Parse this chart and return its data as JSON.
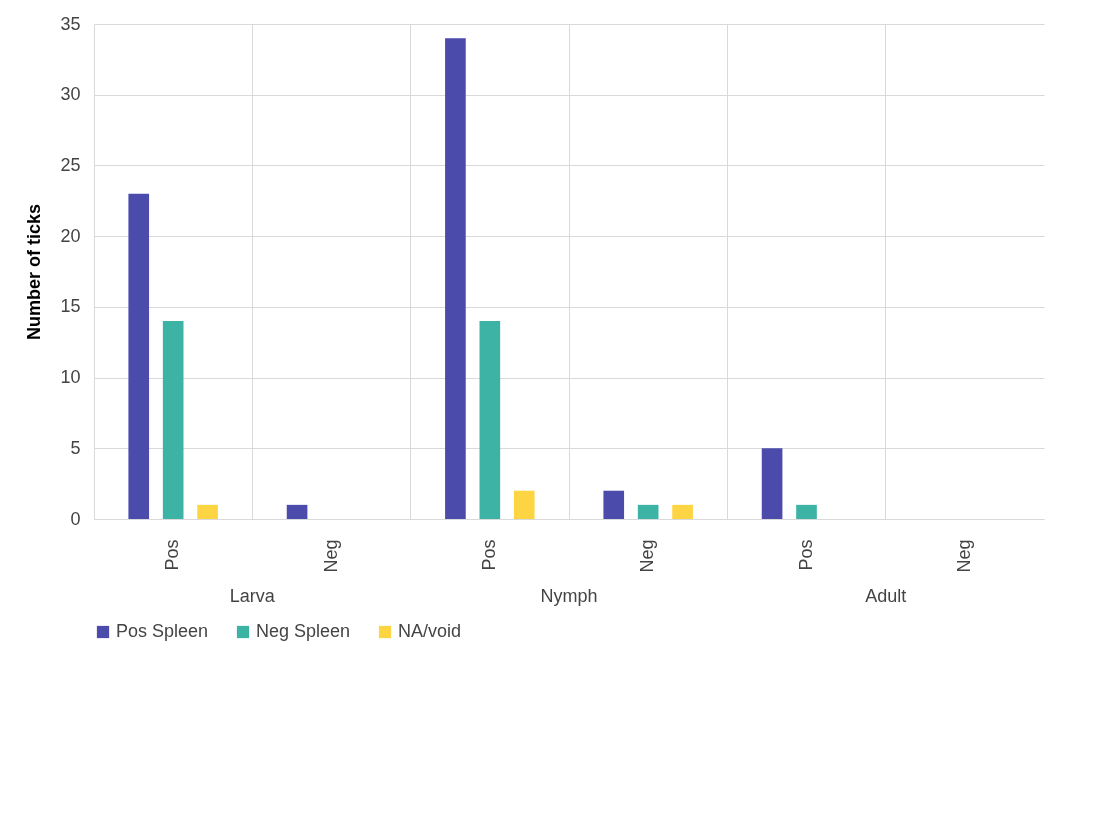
{
  "chart_data": {
    "type": "bar",
    "ylabel": "Number of ticks",
    "categories": [
      "Pos",
      "Neg",
      "Pos",
      "Neg",
      "Pos",
      "Neg"
    ],
    "annotations": [
      "Larva",
      "Nymph",
      "Adult"
    ],
    "series": [
      {
        "name": "Pos Spleen",
        "color": "#4b4bab",
        "values": [
          23,
          1,
          34,
          2,
          5,
          0
        ]
      },
      {
        "name": "Neg Spleen",
        "color": "#3cb3a5",
        "values": [
          14,
          0,
          14,
          1,
          1,
          0
        ]
      },
      {
        "name": "NA/void",
        "color": "#fdd542",
        "values": [
          1,
          0,
          2,
          1,
          0,
          0
        ]
      }
    ],
    "ylim": [
      0,
      35
    ],
    "yticks": [
      0,
      5,
      10,
      15,
      20,
      25,
      30,
      35
    ],
    "grid": true,
    "legend": "bottom"
  }
}
